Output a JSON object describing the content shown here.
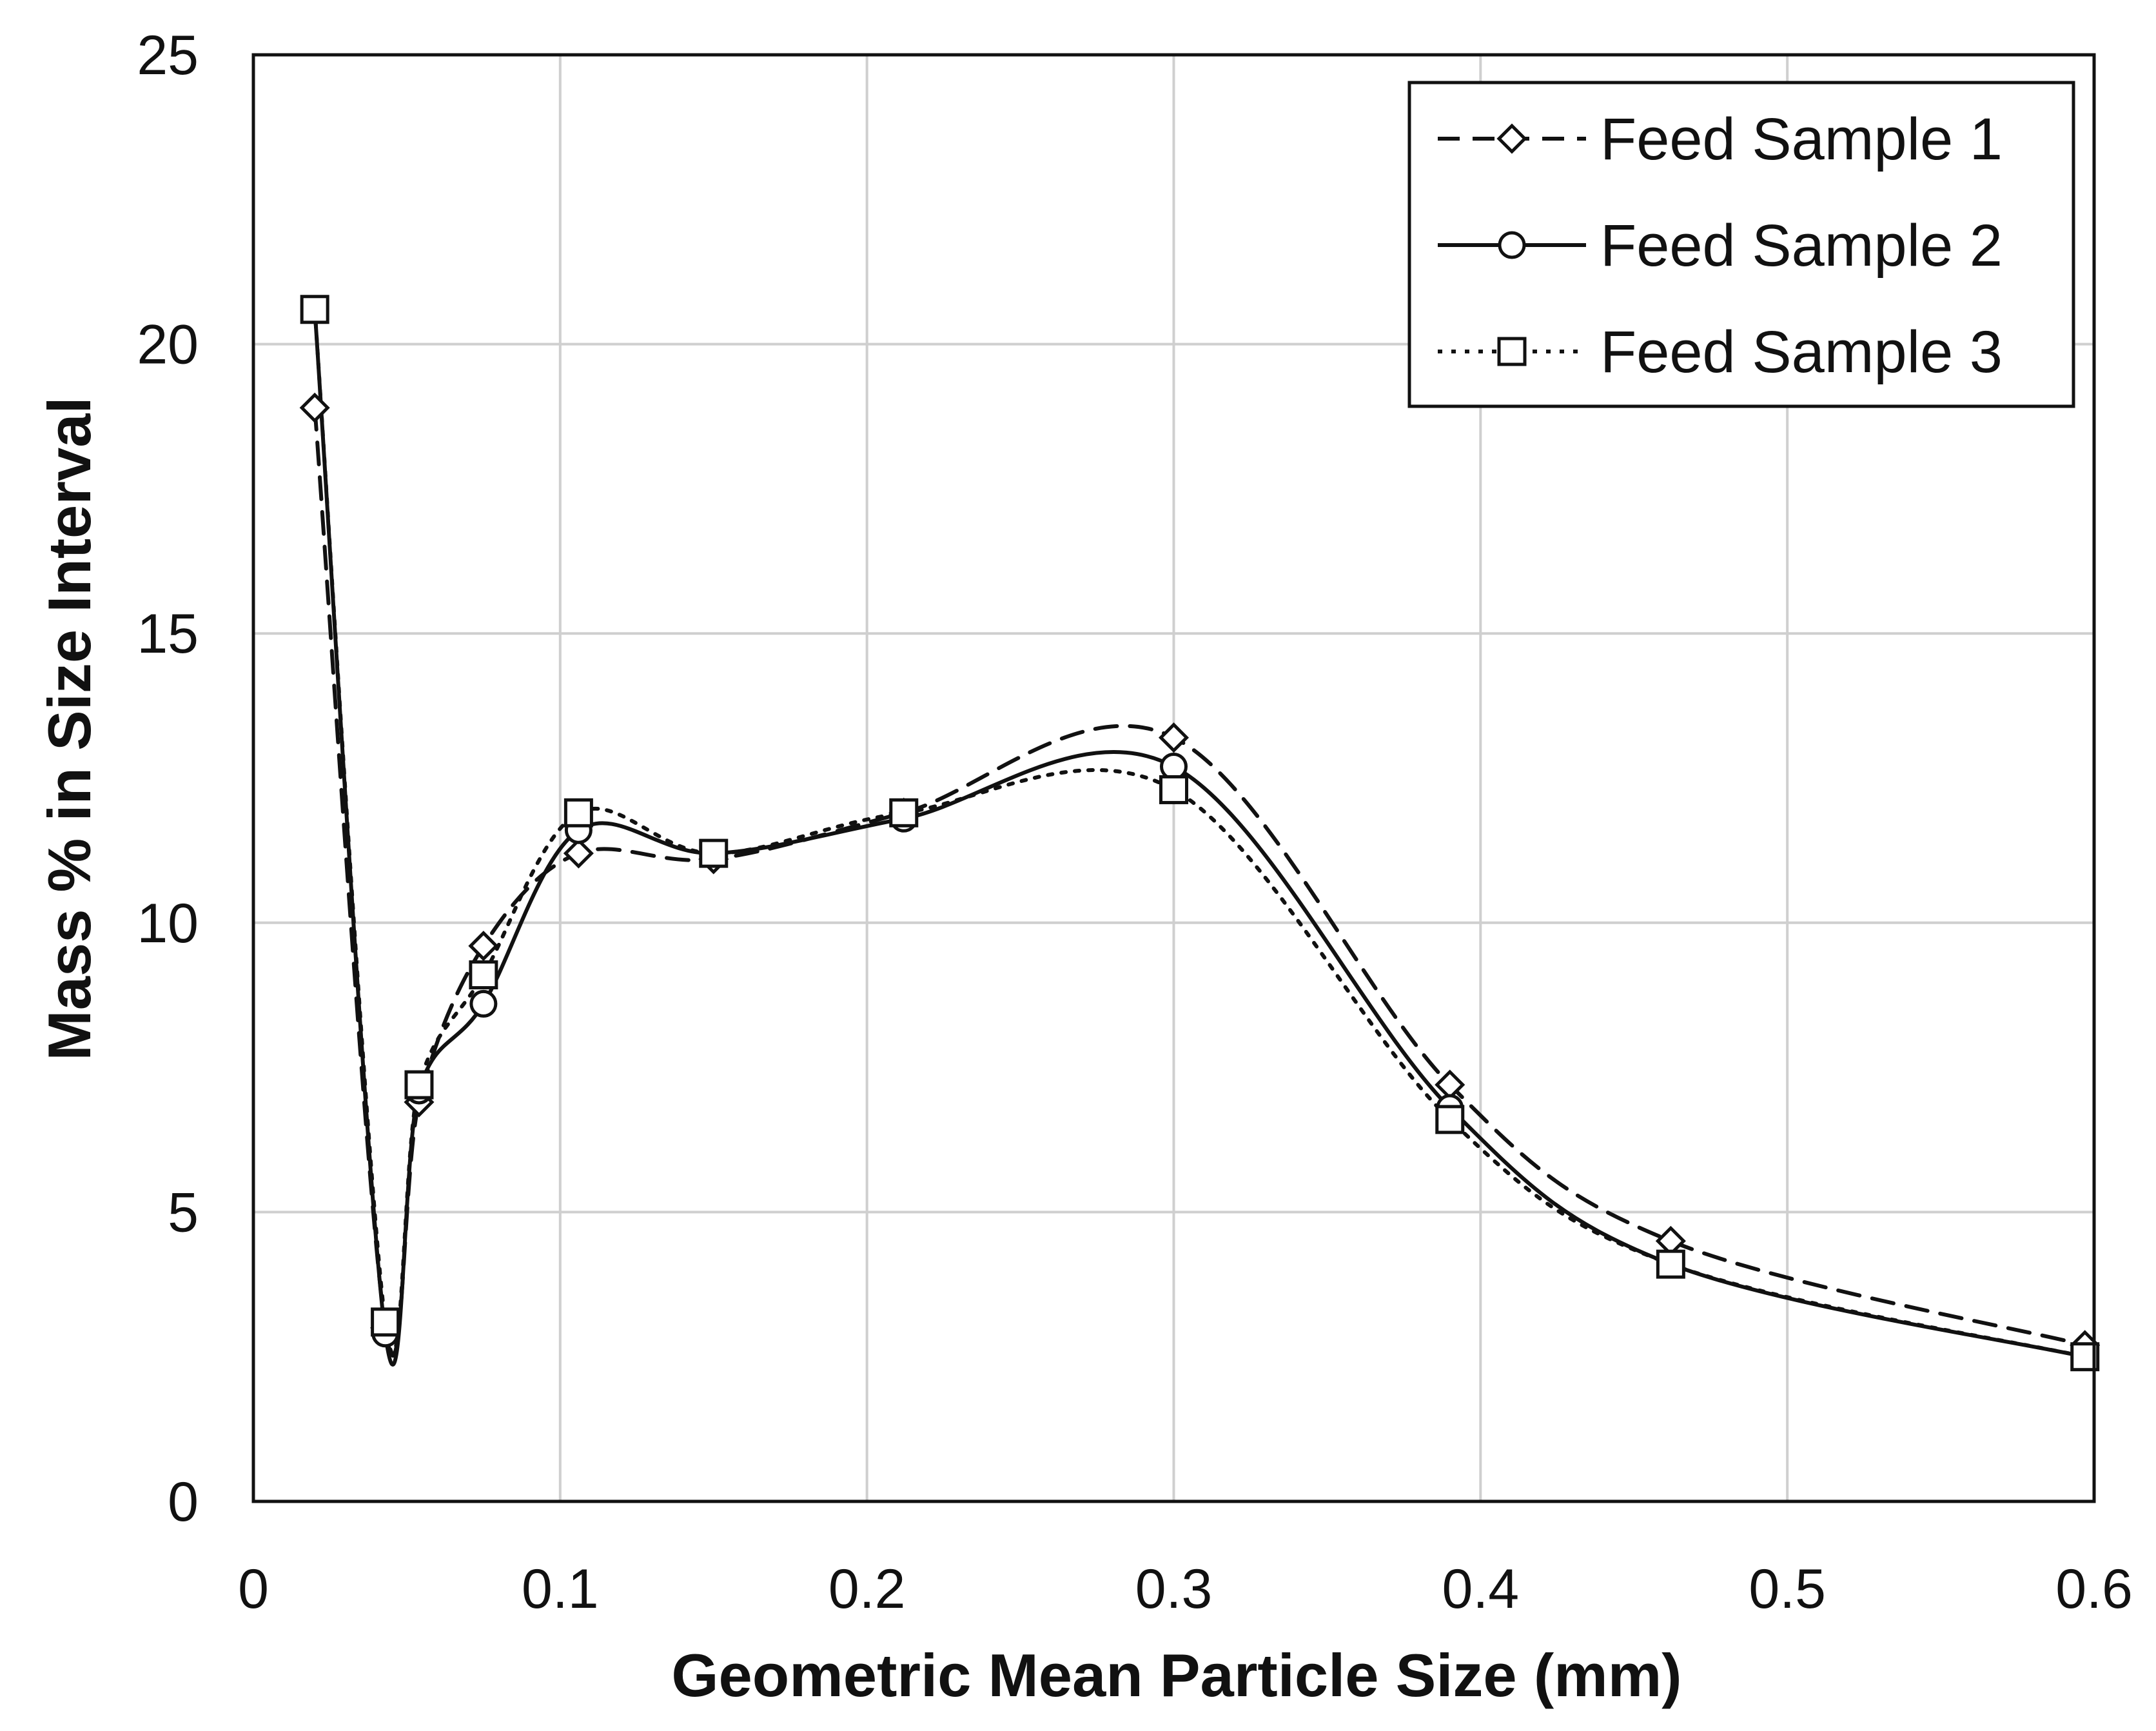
{
  "chart_data": {
    "type": "line",
    "title": "",
    "xlabel": "Geometric Mean Particle Size (mm)",
    "ylabel": "Mass % in Size Interval",
    "xlim": [
      0,
      0.6
    ],
    "ylim": [
      0,
      25
    ],
    "xticks": [
      0,
      0.1,
      0.2,
      0.3,
      0.4,
      0.5,
      0.6
    ],
    "xtick_labels": [
      "0",
      "0.1",
      "0.2",
      "0.3",
      "0.4",
      "0.5",
      "0.6"
    ],
    "yticks": [
      0,
      5,
      10,
      15,
      20,
      25
    ],
    "ytick_labels": [
      "0",
      "5",
      "10",
      "15",
      "20",
      "25"
    ],
    "grid": true,
    "legend_position": "top-right",
    "series": [
      {
        "name": "Feed Sample 1",
        "line_style": "dashed",
        "marker": "diamond",
        "x": [
          0.02,
          0.043,
          0.054,
          0.075,
          0.106,
          0.15,
          0.212,
          0.3,
          0.39,
          0.462,
          0.597
        ],
        "y": [
          18.9,
          3.0,
          6.9,
          9.6,
          11.2,
          11.1,
          11.9,
          13.2,
          7.2,
          4.5,
          2.7
        ]
      },
      {
        "name": "Feed Sample 2",
        "line_style": "solid",
        "marker": "circle",
        "x": [
          0.02,
          0.043,
          0.054,
          0.075,
          0.106,
          0.15,
          0.212,
          0.3,
          0.39,
          0.462,
          0.597
        ],
        "y": [
          20.6,
          2.9,
          7.1,
          8.6,
          11.6,
          11.2,
          11.8,
          12.7,
          6.8,
          4.1,
          2.5
        ]
      },
      {
        "name": "Feed Sample 3",
        "line_style": "dotted",
        "marker": "square",
        "x": [
          0.02,
          0.043,
          0.054,
          0.075,
          0.106,
          0.15,
          0.212,
          0.3,
          0.39,
          0.462,
          0.597
        ],
        "y": [
          20.6,
          3.1,
          7.2,
          9.1,
          11.9,
          11.2,
          11.9,
          12.3,
          6.6,
          4.1,
          2.5
        ]
      }
    ]
  }
}
